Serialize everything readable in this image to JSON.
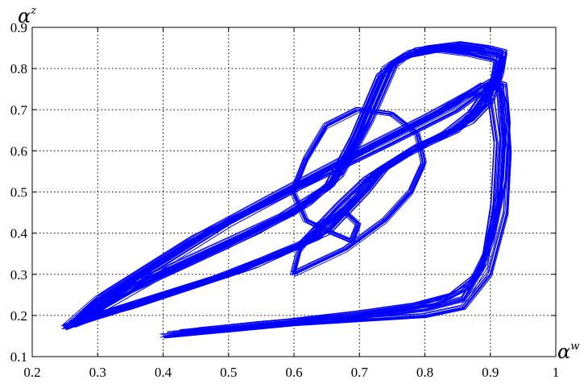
{
  "chart_data": {
    "type": "line",
    "title": "",
    "xlabel": "α",
    "xlabel_sup": "w",
    "ylabel": "α",
    "ylabel_sup": "z",
    "xlim": [
      0.2,
      1.0
    ],
    "ylim": [
      0.1,
      0.9
    ],
    "xticks": [
      "0.2",
      "0.3",
      "0.4",
      "0.5",
      "0.6",
      "0.7",
      "0.8",
      "0.9",
      "1"
    ],
    "yticks": [
      "0.1",
      "0.2",
      "0.3",
      "0.4",
      "0.5",
      "0.6",
      "0.7",
      "0.8",
      "0.9"
    ],
    "grid": true,
    "grid_style": "dotted",
    "legend": "none",
    "series_color": "#0000ff",
    "series": [
      {
        "x": [
          0.4,
          0.5,
          0.6,
          0.7,
          0.8,
          0.86,
          0.9,
          0.925,
          0.93,
          0.925,
          0.91,
          0.85,
          0.75,
          0.62,
          0.45,
          0.3,
          0.25,
          0.35,
          0.5,
          0.6,
          0.66,
          0.7,
          0.74,
          0.78,
          0.83,
          0.88,
          0.92,
          0.915,
          0.88,
          0.85,
          0.78,
          0.72,
          0.69,
          0.62,
          0.5,
          0.3,
          0.25
        ],
        "y": [
          0.15,
          0.165,
          0.18,
          0.19,
          0.2,
          0.22,
          0.3,
          0.45,
          0.6,
          0.72,
          0.77,
          0.7,
          0.62,
          0.52,
          0.39,
          0.24,
          0.17,
          0.26,
          0.37,
          0.45,
          0.52,
          0.65,
          0.8,
          0.84,
          0.85,
          0.84,
          0.83,
          0.78,
          0.7,
          0.65,
          0.6,
          0.54,
          0.48,
          0.38,
          0.3,
          0.2,
          0.17
        ]
      },
      {
        "x": [
          0.41,
          0.52,
          0.63,
          0.72,
          0.8,
          0.86,
          0.89,
          0.905,
          0.91,
          0.9,
          0.87,
          0.8,
          0.7,
          0.58,
          0.44,
          0.31,
          0.26,
          0.34,
          0.47,
          0.58,
          0.65,
          0.69,
          0.73,
          0.77,
          0.82,
          0.87,
          0.91,
          0.905,
          0.87,
          0.83,
          0.77,
          0.71,
          0.67,
          0.61,
          0.48,
          0.31,
          0.26
        ],
        "y": [
          0.155,
          0.17,
          0.185,
          0.2,
          0.215,
          0.24,
          0.32,
          0.47,
          0.62,
          0.73,
          0.74,
          0.68,
          0.6,
          0.5,
          0.38,
          0.25,
          0.175,
          0.265,
          0.36,
          0.44,
          0.51,
          0.63,
          0.78,
          0.83,
          0.845,
          0.835,
          0.82,
          0.77,
          0.69,
          0.64,
          0.59,
          0.53,
          0.47,
          0.37,
          0.29,
          0.205,
          0.175
        ]
      },
      {
        "x": [
          0.43,
          0.55,
          0.66,
          0.75,
          0.82,
          0.87,
          0.895,
          0.915,
          0.92,
          0.915,
          0.89,
          0.82,
          0.72,
          0.6,
          0.47,
          0.33,
          0.27,
          0.37,
          0.52,
          0.61,
          0.665,
          0.71,
          0.75,
          0.79,
          0.84,
          0.89,
          0.915,
          0.91,
          0.89,
          0.86,
          0.79,
          0.73,
          0.7,
          0.64,
          0.52,
          0.33,
          0.27
        ],
        "y": [
          0.16,
          0.18,
          0.195,
          0.21,
          0.23,
          0.27,
          0.35,
          0.5,
          0.64,
          0.75,
          0.76,
          0.69,
          0.61,
          0.51,
          0.4,
          0.26,
          0.18,
          0.28,
          0.39,
          0.46,
          0.53,
          0.66,
          0.81,
          0.845,
          0.855,
          0.845,
          0.835,
          0.785,
          0.71,
          0.66,
          0.61,
          0.55,
          0.49,
          0.39,
          0.31,
          0.21,
          0.18
        ]
      },
      {
        "x": [
          0.45,
          0.58,
          0.69,
          0.78,
          0.84,
          0.88,
          0.9,
          0.92,
          0.925,
          0.92,
          0.9,
          0.84,
          0.74,
          0.63,
          0.5,
          0.36,
          0.28,
          0.39,
          0.54,
          0.62,
          0.67,
          0.715,
          0.755,
          0.8,
          0.85,
          0.895,
          0.92,
          0.915,
          0.9,
          0.87,
          0.8,
          0.74,
          0.71,
          0.65,
          0.54,
          0.35,
          0.28
        ],
        "y": [
          0.165,
          0.185,
          0.205,
          0.225,
          0.25,
          0.3,
          0.38,
          0.53,
          0.67,
          0.76,
          0.77,
          0.71,
          0.63,
          0.53,
          0.42,
          0.28,
          0.19,
          0.29,
          0.4,
          0.47,
          0.54,
          0.67,
          0.815,
          0.85,
          0.86,
          0.85,
          0.84,
          0.79,
          0.72,
          0.67,
          0.62,
          0.56,
          0.5,
          0.4,
          0.32,
          0.22,
          0.19
        ]
      },
      {
        "x": [
          0.6,
          0.68,
          0.74,
          0.78,
          0.8,
          0.79,
          0.75,
          0.7,
          0.65,
          0.62,
          0.6,
          0.62,
          0.66,
          0.69,
          0.7,
          0.68,
          0.64,
          0.61,
          0.6
        ],
        "y": [
          0.3,
          0.36,
          0.43,
          0.5,
          0.57,
          0.64,
          0.69,
          0.7,
          0.66,
          0.58,
          0.5,
          0.43,
          0.4,
          0.38,
          0.42,
          0.45,
          0.42,
          0.36,
          0.3
        ]
      }
    ]
  }
}
